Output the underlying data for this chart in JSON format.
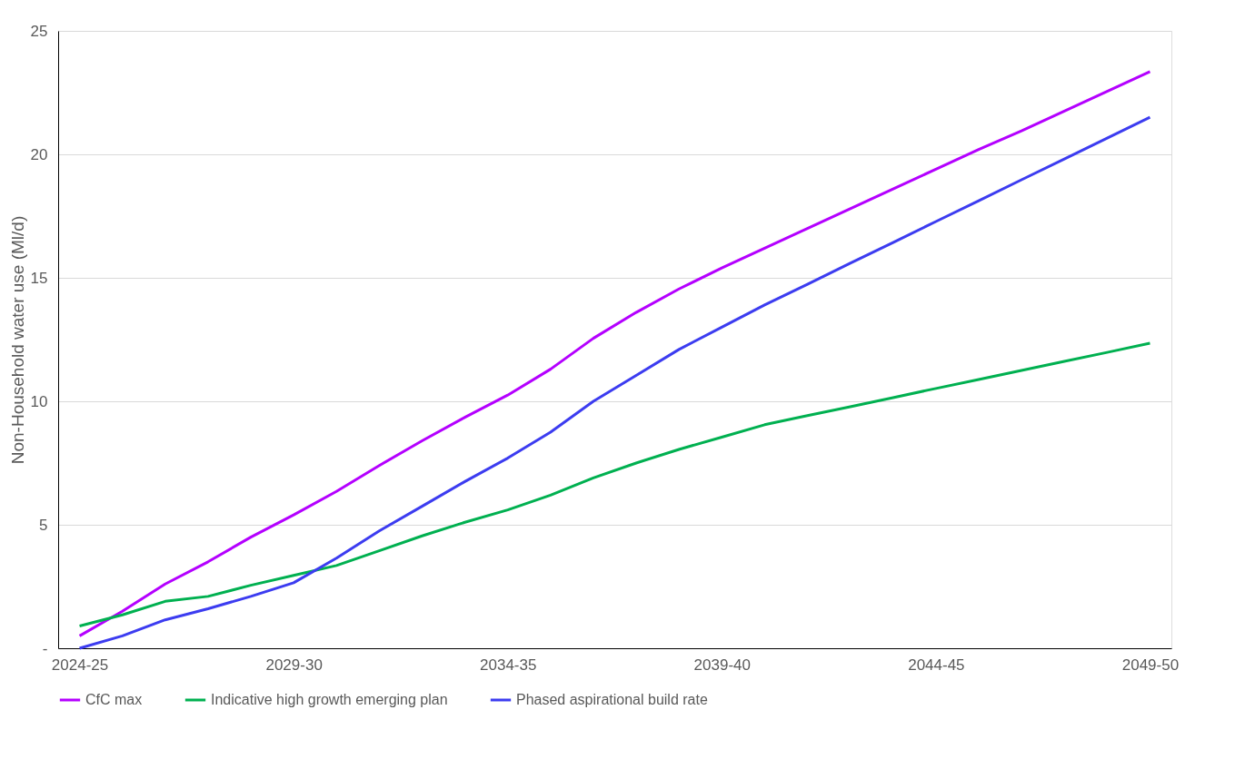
{
  "chart_data": {
    "type": "line",
    "ylabel": "Non-Household water use (Ml/d)",
    "categories": [
      "2024-25",
      null,
      null,
      null,
      null,
      "2029-30",
      null,
      null,
      null,
      null,
      "2034-35",
      null,
      null,
      null,
      null,
      "2039-40",
      null,
      null,
      null,
      null,
      "2044-45",
      null,
      null,
      null,
      null,
      "2049-50"
    ],
    "series": [
      {
        "name": "CfC max",
        "color": "#b400ff",
        "values": [
          0.5,
          1.5,
          2.6,
          3.5,
          4.5,
          5.4,
          6.35,
          7.4,
          8.4,
          9.35,
          10.25,
          11.3,
          12.55,
          13.6,
          14.55,
          15.4,
          16.2,
          17.0,
          17.8,
          18.6,
          19.4,
          20.2,
          20.95,
          21.75,
          22.55,
          23.35
        ]
      },
      {
        "name": "Indicative high growth emerging plan",
        "color": "#00b050",
        "values": [
          0.9,
          1.35,
          1.9,
          2.1,
          2.55,
          2.95,
          3.35,
          3.95,
          4.55,
          5.1,
          5.6,
          6.2,
          6.9,
          7.5,
          8.05,
          8.55,
          9.05,
          9.42,
          9.78,
          10.15,
          10.52,
          10.88,
          11.25,
          11.62,
          11.98,
          12.35
        ]
      },
      {
        "name": "Phased aspirational build rate",
        "color": "#3c3cf0",
        "values": [
          0.0,
          0.5,
          1.15,
          1.6,
          2.1,
          2.65,
          3.65,
          4.75,
          5.75,
          6.75,
          7.7,
          8.75,
          10.0,
          11.05,
          12.1,
          13.0,
          13.9,
          14.74,
          15.59,
          16.43,
          17.28,
          18.12,
          18.97,
          19.81,
          20.66,
          21.5
        ]
      }
    ],
    "ylim": [
      0,
      25
    ],
    "yticks": [
      {
        "value": 0,
        "label": "-"
      },
      5,
      10,
      15,
      20,
      25
    ],
    "grid": "y",
    "legend": "bottom",
    "marker": "none",
    "line_style": "solid"
  }
}
